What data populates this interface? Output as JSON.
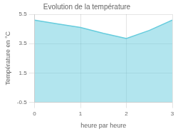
{
  "chart_data": {
    "type": "area",
    "title": "Evolution de la température",
    "xlabel": "heure par heure",
    "ylabel": "Température en °C",
    "x": [
      0,
      0.5,
      1,
      1.5,
      2,
      2.5,
      3
    ],
    "values": [
      5.1,
      4.85,
      4.6,
      4.2,
      3.85,
      4.4,
      5.1
    ],
    "color": "#66ccdd",
    "xlim": [
      0,
      3
    ],
    "xticks": [
      0,
      1,
      2,
      3
    ],
    "ylim": [
      -0.5,
      5.5
    ],
    "yticks": [
      -0.5,
      1.5,
      3.5,
      5.5
    ],
    "grid": true
  }
}
